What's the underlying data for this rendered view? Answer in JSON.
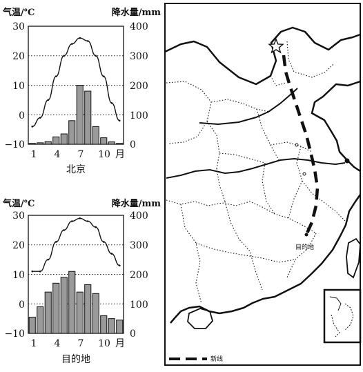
{
  "chart_data": [
    {
      "type": "bar+line",
      "title": "北京",
      "left_axis_title": "气温/℃",
      "right_axis_title": "降水量/mm",
      "x_tick_labels": [
        "1",
        "4",
        "7",
        "10",
        "月"
      ],
      "left_ticks": [
        "30",
        "20",
        "10",
        "0",
        "−10"
      ],
      "right_ticks": [
        "400",
        "300",
        "200",
        "100",
        "0"
      ],
      "ylim_temp": [
        -10,
        30
      ],
      "ylim_precip": [
        0,
        400
      ],
      "months": [
        1,
        2,
        3,
        4,
        5,
        6,
        7,
        8,
        9,
        10,
        11,
        12
      ],
      "temperature": [
        -4,
        -1,
        5,
        13,
        20,
        24,
        26,
        25,
        20,
        13,
        4,
        -2
      ],
      "precipitation": [
        3,
        5,
        9,
        25,
        35,
        80,
        200,
        180,
        60,
        22,
        8,
        3
      ],
      "grid": "dotted"
    },
    {
      "type": "bar+line",
      "title": "目的地",
      "left_axis_title": "气温/℃",
      "right_axis_title": "降水量/mm",
      "x_tick_labels": [
        "1",
        "4",
        "7",
        "10",
        "月"
      ],
      "left_ticks": [
        "30",
        "20",
        "10",
        "0",
        "−10"
      ],
      "right_ticks": [
        "400",
        "300",
        "200",
        "100",
        "0"
      ],
      "ylim_temp": [
        -10,
        30
      ],
      "ylim_precip": [
        0,
        400
      ],
      "months": [
        1,
        2,
        3,
        4,
        5,
        6,
        7,
        8,
        9,
        10,
        11,
        12
      ],
      "temperature": [
        11,
        11,
        15,
        21,
        25,
        28,
        29,
        28,
        26,
        21,
        17,
        13
      ],
      "precipitation": [
        55,
        90,
        140,
        170,
        190,
        210,
        140,
        165,
        135,
        60,
        50,
        45
      ],
      "grid": "dotted"
    }
  ],
  "map": {
    "destination_label": "目的地",
    "legend_label": "新线"
  }
}
